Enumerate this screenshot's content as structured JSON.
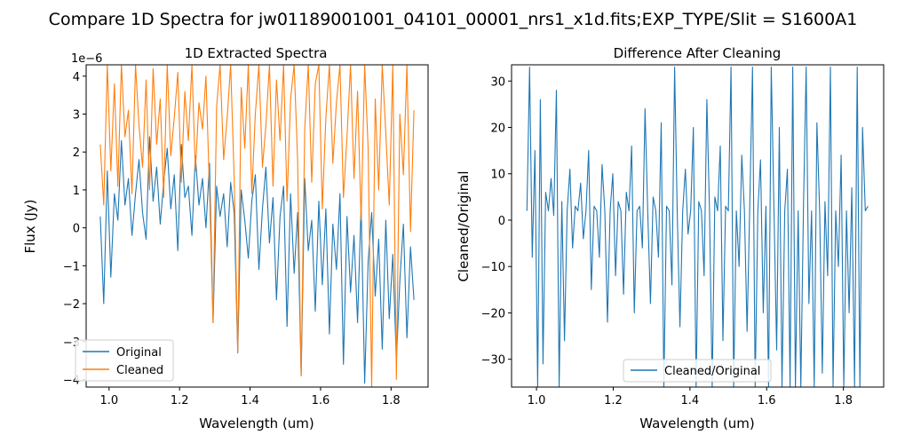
{
  "figure": {
    "suptitle": "Compare 1D Spectra for jw01189001001_04101_00001_nrs1_x1d.fits;EXP_TYPE/Slit = S1600A1"
  },
  "colors": {
    "original": "#1f77b4",
    "cleaned": "#ff7f0e",
    "ratio": "#1f77b4"
  },
  "chart_data": [
    {
      "type": "line",
      "title": "1D Extracted Spectra",
      "xlabel": "Wavelength (um)",
      "ylabel": "Flux (Jy)",
      "y_offset_label": "1e−6",
      "xlim": [
        0.935,
        1.905
      ],
      "ylim": [
        -4.2,
        4.3
      ],
      "xticks": [
        1.0,
        1.2,
        1.4,
        1.6,
        1.8
      ],
      "xtick_labels": [
        "1.0",
        "1.2",
        "1.4",
        "1.6",
        "1.8"
      ],
      "yticks": [
        -4,
        -3,
        -2,
        -1,
        0,
        1,
        2,
        3,
        4
      ],
      "ytick_labels": [
        "−4",
        "−3",
        "−2",
        "−1",
        "0",
        "1",
        "2",
        "3",
        "4"
      ],
      "grid": false,
      "legend": "lower-left",
      "series": [
        {
          "name": "Original",
          "color": "#1f77b4",
          "x": [
            0.975,
            0.985,
            0.995,
            1.005,
            1.015,
            1.025,
            1.035,
            1.045,
            1.055,
            1.065,
            1.075,
            1.085,
            1.095,
            1.105,
            1.115,
            1.125,
            1.135,
            1.145,
            1.155,
            1.165,
            1.175,
            1.185,
            1.195,
            1.205,
            1.215,
            1.225,
            1.235,
            1.245,
            1.255,
            1.265,
            1.275,
            1.285,
            1.295,
            1.305,
            1.315,
            1.325,
            1.335,
            1.345,
            1.355,
            1.365,
            1.375,
            1.385,
            1.395,
            1.405,
            1.415,
            1.425,
            1.435,
            1.445,
            1.455,
            1.465,
            1.475,
            1.485,
            1.495,
            1.505,
            1.515,
            1.525,
            1.535,
            1.545,
            1.555,
            1.565,
            1.575,
            1.585,
            1.595,
            1.605,
            1.615,
            1.625,
            1.635,
            1.645,
            1.655,
            1.665,
            1.675,
            1.685,
            1.695,
            1.705,
            1.715,
            1.725,
            1.735,
            1.745,
            1.755,
            1.765,
            1.775,
            1.785,
            1.795,
            1.805,
            1.815,
            1.825,
            1.835,
            1.845,
            1.855,
            1.865
          ],
          "values": [
            0.3,
            -2.0,
            1.5,
            -1.3,
            0.9,
            0.2,
            2.3,
            0.6,
            1.3,
            -0.2,
            0.9,
            1.8,
            0.4,
            -0.3,
            2.4,
            0.7,
            1.6,
            0.1,
            1.2,
            2.1,
            0.5,
            1.4,
            -0.6,
            2.2,
            0.8,
            1.1,
            -0.2,
            1.9,
            0.6,
            1.3,
            0.0,
            1.7,
            -2.5,
            1.1,
            0.3,
            0.9,
            -0.5,
            1.2,
            0.4,
            -3.3,
            1.0,
            0.2,
            -0.8,
            0.7,
            1.4,
            -1.1,
            0.5,
            1.6,
            -0.4,
            0.8,
            -1.9,
            0.3,
            1.1,
            -2.6,
            0.9,
            -1.2,
            0.4,
            -3.9,
            1.3,
            -0.6,
            0.2,
            -2.2,
            0.7,
            -1.5,
            0.5,
            -2.8,
            0.1,
            -1.1,
            0.9,
            -3.6,
            0.3,
            -1.7,
            -0.2,
            -2.5,
            0.6,
            -4.1,
            -0.9,
            0.4,
            -1.8,
            -0.3,
            -3.2,
            0.2,
            -2.4,
            -0.7,
            -3.5,
            -1.4,
            0.1,
            -2.9,
            -0.5,
            -1.9
          ]
        },
        {
          "name": "Cleaned",
          "color": "#ff7f0e",
          "x": [
            0.975,
            0.985,
            0.995,
            1.005,
            1.015,
            1.025,
            1.035,
            1.045,
            1.055,
            1.065,
            1.075,
            1.085,
            1.095,
            1.105,
            1.115,
            1.125,
            1.135,
            1.145,
            1.155,
            1.165,
            1.175,
            1.185,
            1.195,
            1.205,
            1.215,
            1.225,
            1.235,
            1.245,
            1.255,
            1.265,
            1.275,
            1.285,
            1.295,
            1.305,
            1.315,
            1.325,
            1.335,
            1.345,
            1.355,
            1.365,
            1.375,
            1.385,
            1.395,
            1.405,
            1.415,
            1.425,
            1.435,
            1.445,
            1.455,
            1.465,
            1.475,
            1.485,
            1.495,
            1.505,
            1.515,
            1.525,
            1.535,
            1.545,
            1.555,
            1.565,
            1.575,
            1.585,
            1.595,
            1.605,
            1.615,
            1.625,
            1.635,
            1.645,
            1.655,
            1.665,
            1.675,
            1.685,
            1.695,
            1.705,
            1.715,
            1.725,
            1.735,
            1.745,
            1.755,
            1.765,
            1.775,
            1.785,
            1.795,
            1.805,
            1.815,
            1.825,
            1.835,
            1.845,
            1.855,
            1.865
          ],
          "values": [
            2.2,
            0.6,
            4.3,
            1.5,
            3.8,
            1.1,
            4.3,
            2.4,
            3.1,
            0.9,
            4.3,
            2.7,
            1.6,
            3.9,
            1.0,
            4.2,
            2.2,
            3.4,
            0.8,
            4.3,
            1.9,
            2.9,
            4.1,
            1.2,
            3.6,
            2.3,
            4.3,
            1.5,
            3.3,
            2.6,
            4.0,
            1.0,
            -2.5,
            3.2,
            4.3,
            1.8,
            2.9,
            4.3,
            1.3,
            -3.3,
            3.7,
            2.1,
            4.3,
            0.9,
            3.0,
            4.3,
            1.6,
            2.7,
            4.3,
            1.1,
            3.9,
            2.3,
            4.3,
            0.7,
            3.4,
            4.3,
            1.8,
            -3.9,
            2.6,
            4.3,
            1.2,
            3.8,
            4.3,
            0.5,
            2.9,
            4.3,
            1.7,
            3.3,
            4.3,
            0.8,
            2.4,
            4.3,
            1.3,
            3.6,
            0.2,
            4.3,
            2.1,
            -4.2,
            3.4,
            1.0,
            4.3,
            2.5,
            0.6,
            4.3,
            -4.0,
            3.0,
            1.4,
            4.3,
            -0.1,
            3.1
          ]
        }
      ]
    },
    {
      "type": "line",
      "title": "Difference After Cleaning",
      "xlabel": "Wavelength (um)",
      "ylabel": "Cleaned/Original",
      "xlim": [
        0.935,
        1.905
      ],
      "ylim": [
        -36,
        33.5
      ],
      "xticks": [
        1.0,
        1.2,
        1.4,
        1.6,
        1.8
      ],
      "xtick_labels": [
        "1.0",
        "1.2",
        "1.4",
        "1.6",
        "1.8"
      ],
      "yticks": [
        -30,
        -20,
        -10,
        0,
        10,
        20,
        30
      ],
      "ytick_labels": [
        "−30",
        "−20",
        "−10",
        "0",
        "10",
        "20",
        "30"
      ],
      "grid": false,
      "legend": "lower-center",
      "series": [
        {
          "name": "Cleaned/Original",
          "color": "#1f77b4",
          "x": [
            0.975,
            0.982,
            0.989,
            0.996,
            1.003,
            1.01,
            1.017,
            1.024,
            1.031,
            1.038,
            1.045,
            1.052,
            1.059,
            1.066,
            1.073,
            1.08,
            1.087,
            1.094,
            1.101,
            1.108,
            1.115,
            1.122,
            1.129,
            1.136,
            1.143,
            1.15,
            1.157,
            1.164,
            1.171,
            1.178,
            1.185,
            1.192,
            1.199,
            1.206,
            1.213,
            1.22,
            1.227,
            1.234,
            1.241,
            1.248,
            1.255,
            1.262,
            1.269,
            1.276,
            1.283,
            1.29,
            1.297,
            1.304,
            1.311,
            1.318,
            1.325,
            1.332,
            1.339,
            1.346,
            1.353,
            1.36,
            1.367,
            1.374,
            1.381,
            1.388,
            1.395,
            1.402,
            1.409,
            1.416,
            1.423,
            1.43,
            1.437,
            1.444,
            1.451,
            1.458,
            1.465,
            1.472,
            1.479,
            1.486,
            1.493,
            1.5,
            1.507,
            1.514,
            1.521,
            1.528,
            1.535,
            1.542,
            1.549,
            1.556,
            1.563,
            1.57,
            1.577,
            1.584,
            1.591,
            1.598,
            1.605,
            1.612,
            1.619,
            1.626,
            1.633,
            1.64,
            1.647,
            1.654,
            1.661,
            1.668,
            1.675,
            1.682,
            1.689,
            1.696,
            1.703,
            1.71,
            1.717,
            1.724,
            1.731,
            1.738,
            1.745,
            1.752,
            1.759,
            1.766,
            1.773,
            1.78,
            1.787,
            1.794,
            1.801,
            1.808,
            1.815,
            1.822,
            1.829,
            1.836,
            1.843,
            1.85,
            1.857,
            1.864
          ],
          "values": [
            2,
            33,
            -8,
            15,
            -36,
            26,
            -31,
            6,
            2,
            9,
            1,
            28,
            -36,
            4,
            -26,
            2,
            11,
            -6,
            3,
            2,
            8,
            -4,
            2,
            15,
            -15,
            3,
            2,
            -8,
            12,
            2,
            -22,
            2,
            10,
            -12,
            4,
            2,
            -16,
            6,
            2,
            16,
            -20,
            2,
            3,
            -6,
            24,
            2,
            -18,
            5,
            2,
            -8,
            21,
            -36,
            3,
            2,
            -14,
            33,
            1,
            -23,
            2,
            11,
            -3,
            2,
            20,
            -36,
            4,
            2,
            -12,
            26,
            2,
            -36,
            5,
            2,
            16,
            -26,
            3,
            2,
            33,
            -36,
            2,
            -10,
            14,
            2,
            -24,
            3,
            33,
            -36,
            2,
            13,
            -20,
            3,
            -36,
            33,
            2,
            -28,
            20,
            -36,
            2,
            11,
            -36,
            33,
            -36,
            2,
            -36,
            3,
            33,
            -18,
            2,
            -36,
            21,
            2,
            -33,
            4,
            -12,
            33,
            -36,
            2,
            -10,
            14,
            -36,
            2,
            -20,
            7,
            -36,
            33,
            -36,
            20,
            2,
            3
          ]
        }
      ]
    }
  ]
}
